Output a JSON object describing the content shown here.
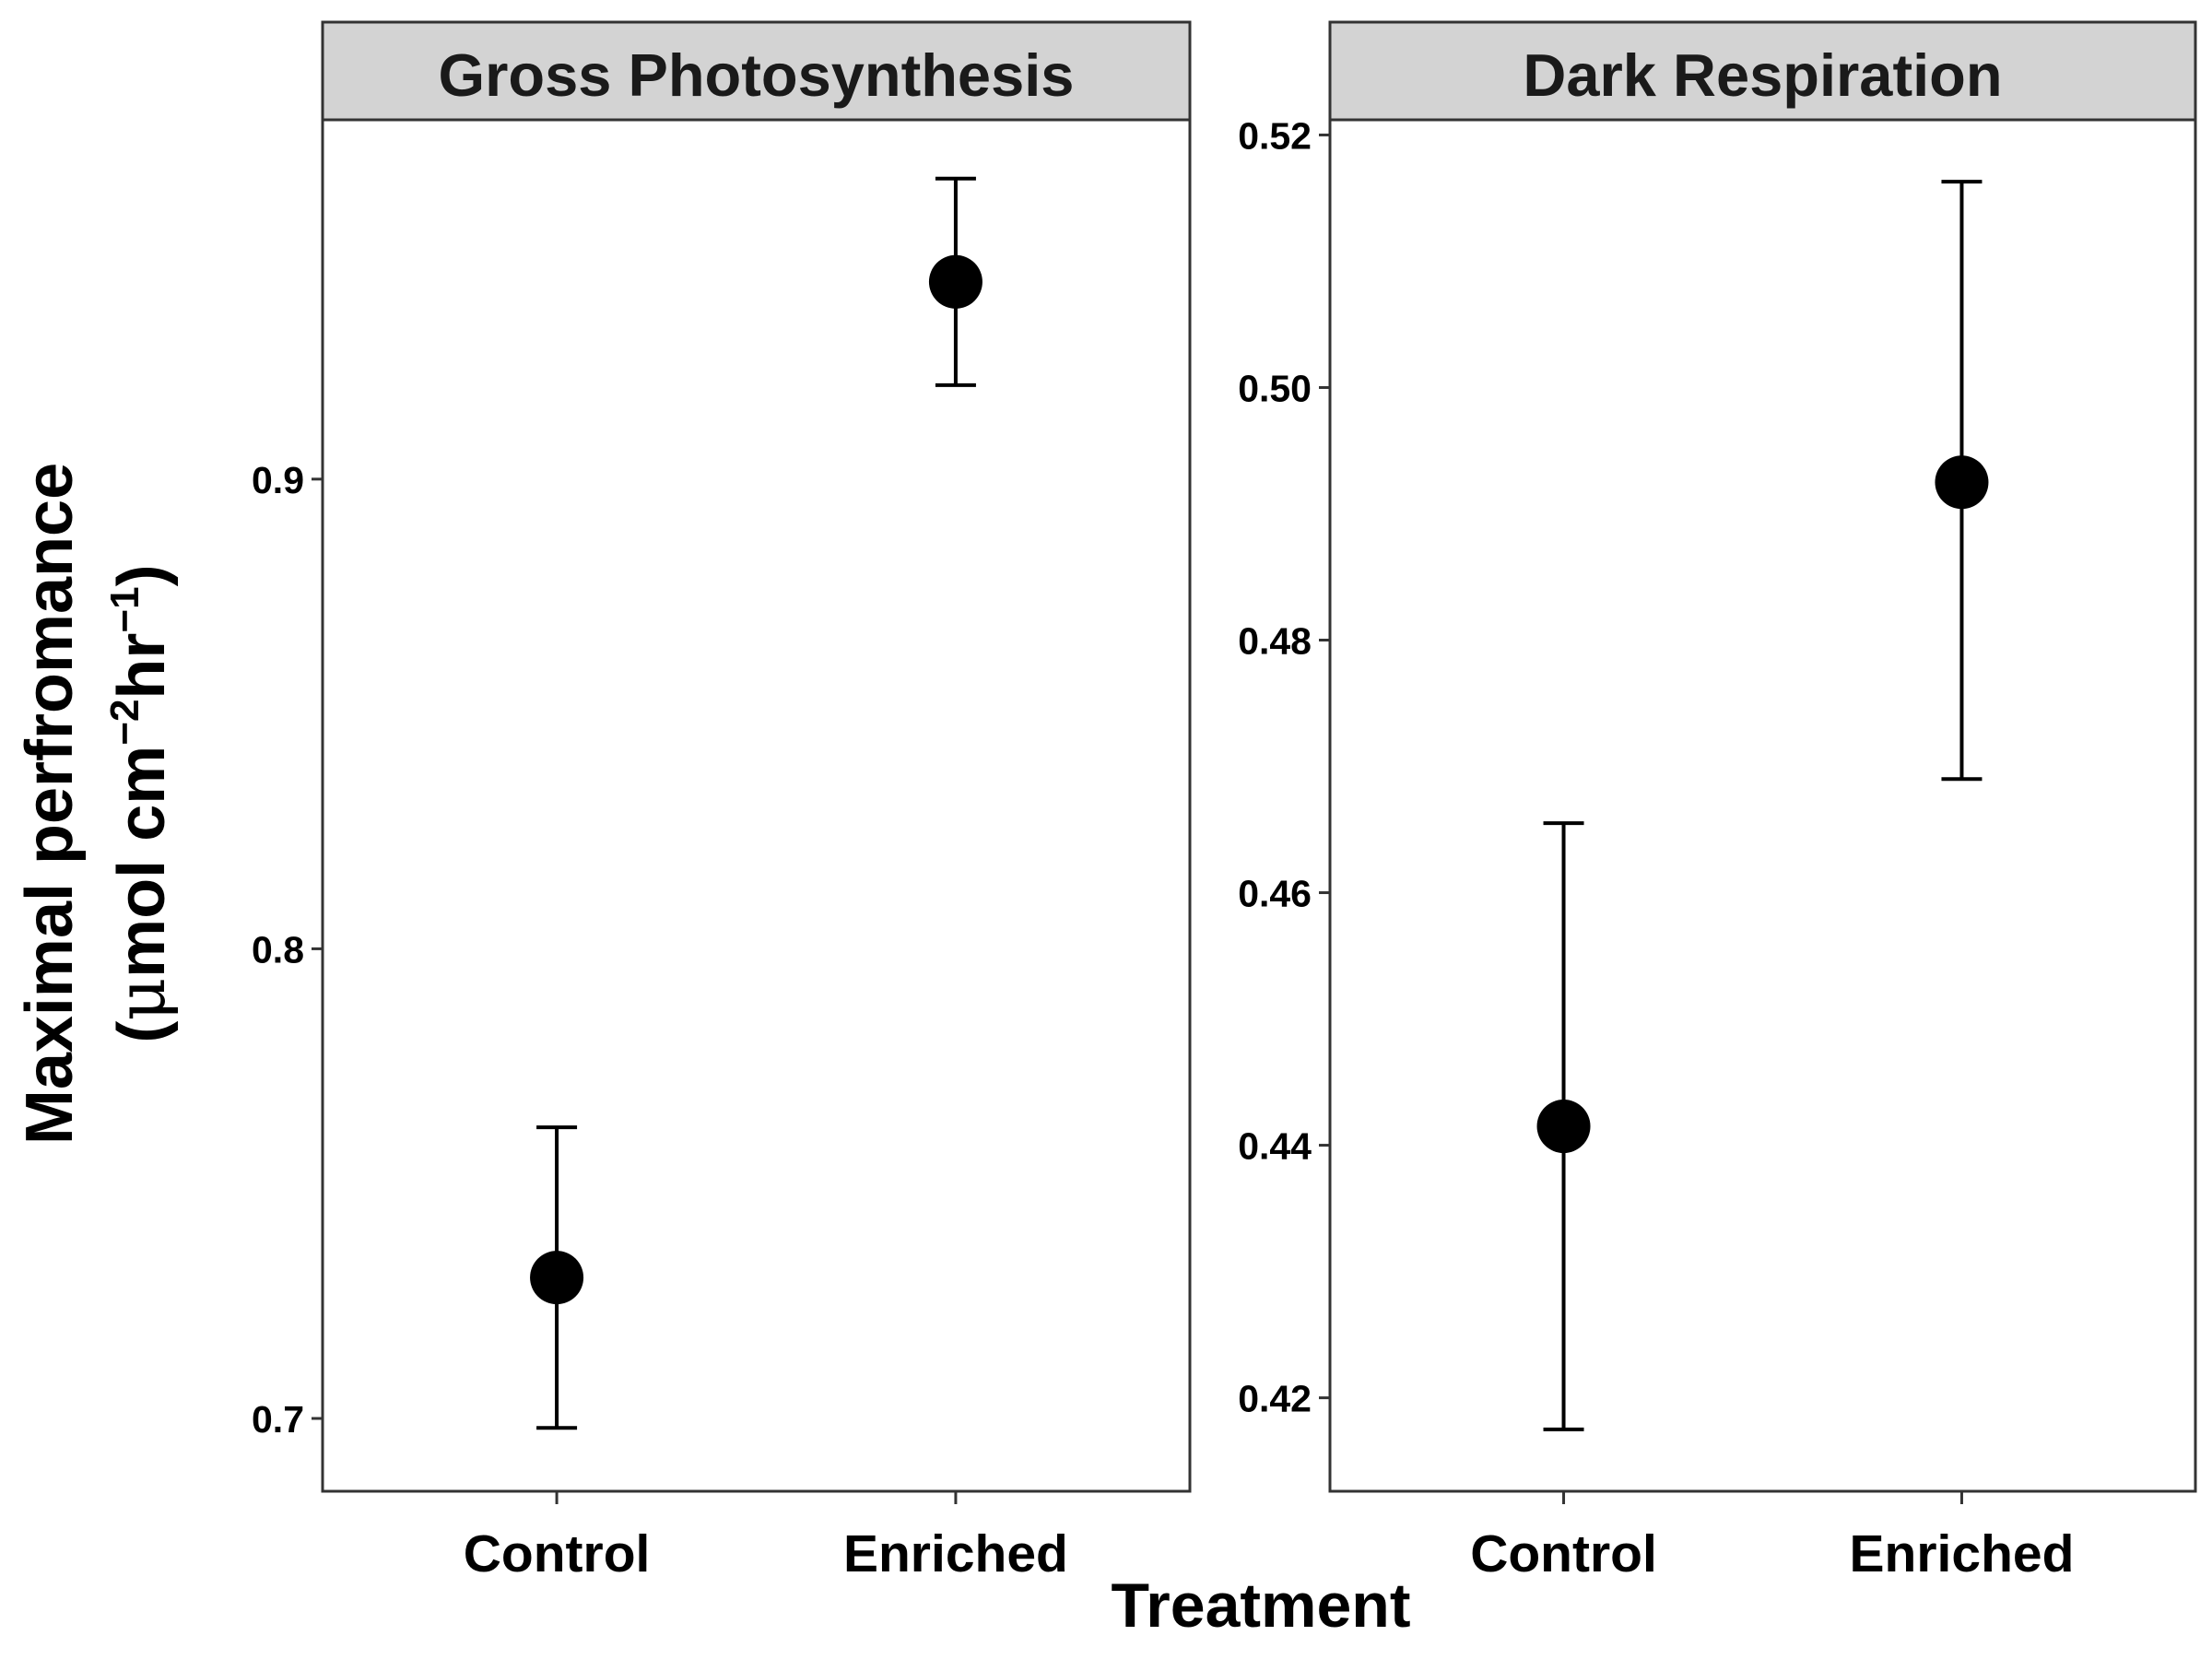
{
  "chart_data": {
    "type": "scatter",
    "xlabel": "Treatment",
    "ylabel": {
      "line1": "Maximal perfromance",
      "line2_open": "(",
      "mu": "μ",
      "unit_a": "mol cm",
      "exp_a": "−2",
      "unit_b": "hr",
      "exp_b": "−1",
      "line2_close": ")"
    },
    "categories": [
      "Control",
      "Enriched"
    ],
    "panels": [
      {
        "title": "Gross Photosynthesis",
        "ylim": [
          0.6845,
          0.9765
        ],
        "yticks": [
          0.7,
          0.8,
          0.9
        ],
        "ytick_labels": [
          "0.7",
          "0.8",
          "0.9"
        ],
        "points": [
          {
            "category": "Control",
            "y": 0.73,
            "ymin": 0.698,
            "ymax": 0.762
          },
          {
            "category": "Enriched",
            "y": 0.942,
            "ymin": 0.92,
            "ymax": 0.964
          }
        ]
      },
      {
        "title": "Dark Respiration",
        "ylim": [
          0.4126,
          0.5212
        ],
        "yticks": [
          0.42,
          0.44,
          0.46,
          0.48,
          0.5,
          0.52
        ],
        "ytick_labels": [
          "0.42",
          "0.44",
          "0.46",
          "0.48",
          "0.50",
          "0.52"
        ],
        "points": [
          {
            "category": "Control",
            "y": 0.4415,
            "ymin": 0.4175,
            "ymax": 0.4655
          },
          {
            "category": "Enriched",
            "y": 0.4925,
            "ymin": 0.469,
            "ymax": 0.5163
          }
        ]
      }
    ],
    "grid": false,
    "point_color": "#000000",
    "strip_fill": "#d3d3d3"
  }
}
